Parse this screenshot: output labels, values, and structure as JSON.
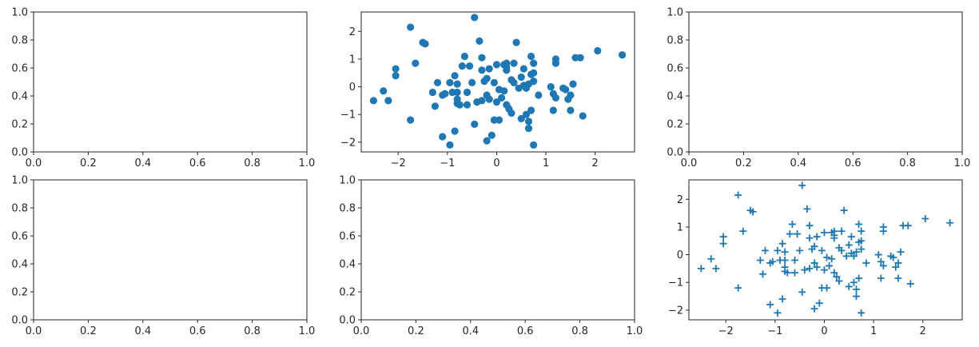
{
  "colors": {
    "marker": "#1f77b4",
    "axis": "#262626",
    "background": "#ffffff"
  },
  "chart_data": [
    {
      "type": "empty",
      "panel": "row 1, column 1",
      "xlim": [
        0,
        1
      ],
      "ylim": [
        0,
        1
      ],
      "xticks": [
        0,
        0.2,
        0.4,
        0.6,
        0.8,
        1
      ],
      "xtick_labels": [
        "0.0",
        "0.2",
        "0.4",
        "0.6",
        "0.8",
        "1.0"
      ],
      "yticks": [
        0,
        0.2,
        0.4,
        0.6,
        0.8,
        1
      ],
      "ytick_labels": [
        "0.0",
        "0.2",
        "0.4",
        "0.6",
        "0.8",
        "1.0"
      ],
      "grid": false
    },
    {
      "type": "scatter",
      "panel": "row 1, column 2",
      "marker": "circle",
      "xlim": [
        -2.75,
        2.8
      ],
      "ylim": [
        -2.35,
        2.7
      ],
      "xticks": [
        -2,
        -1,
        0,
        1,
        2
      ],
      "xtick_labels": [
        "−2",
        "−1",
        "0",
        "1",
        "2"
      ],
      "yticks": [
        -2,
        -1,
        0,
        1,
        2
      ],
      "ytick_labels": [
        "−2",
        "−1",
        "0",
        "1",
        "2"
      ],
      "grid": false,
      "x": [
        -2.5,
        -2.3,
        -2.2,
        -2.05,
        -2.05,
        -1.75,
        -1.75,
        -1.65,
        -1.5,
        -1.45,
        -1.3,
        -1.25,
        -1.2,
        -1.1,
        -1.1,
        -1.05,
        -0.95,
        -0.95,
        -0.9,
        -0.85,
        -0.85,
        -0.8,
        -0.8,
        -0.8,
        -0.75,
        -0.7,
        -0.65,
        -0.6,
        -0.6,
        -0.55,
        -0.5,
        -0.45,
        -0.4,
        -0.35,
        -0.3,
        -0.3,
        -0.3,
        -0.25,
        -0.2,
        -0.2,
        -0.2,
        -0.15,
        -0.15,
        -0.1,
        -0.05,
        -0.05,
        0.0,
        0.0,
        0.05,
        0.1,
        0.15,
        0.15,
        0.2,
        0.2,
        0.2,
        0.2,
        0.25,
        0.3,
        0.3,
        0.35,
        0.35,
        0.4,
        0.45,
        0.5,
        0.5,
        0.55,
        0.55,
        0.6,
        0.6,
        0.65,
        0.65,
        0.65,
        0.7,
        0.7,
        0.7,
        0.75,
        0.75,
        0.75,
        0.75,
        0.85,
        1.1,
        1.15,
        1.15,
        1.2,
        1.2,
        1.2,
        1.35,
        1.4,
        1.45,
        1.5,
        1.5,
        1.55,
        1.6,
        1.7,
        1.75,
        2.05,
        2.55,
        -0.8,
        -0.45,
        0.05
      ],
      "y": [
        -0.5,
        -0.15,
        -0.5,
        0.4,
        0.65,
        2.15,
        -1.2,
        0.85,
        1.6,
        1.55,
        -0.2,
        -0.7,
        0.15,
        -0.3,
        -1.8,
        -0.25,
        -2.1,
        0.15,
        -0.2,
        0.4,
        -1.6,
        0.1,
        -0.6,
        -0.2,
        -0.65,
        0.75,
        1.1,
        -0.2,
        -0.65,
        0.75,
        0.15,
        2.5,
        -0.55,
        1.65,
        1.05,
        0.6,
        -0.5,
        0.2,
        -1.95,
        -0.3,
        0.3,
        0.65,
        -0.45,
        -1.75,
        0.15,
        -1.2,
        -0.55,
        0.8,
        -1.2,
        -0.4,
        0.8,
        -0.15,
        0.6,
        0.7,
        0.85,
        -0.65,
        -0.8,
        0.25,
        -0.95,
        0.15,
        0.85,
        1.6,
        -0.05,
        0.35,
        -1.15,
        0.05,
        0.65,
        -0.05,
        -1.0,
        -1.5,
        0.1,
        -1.25,
        1.1,
        -0.85,
        0.45,
        -2.1,
        0.5,
        0.2,
        0.85,
        -0.3,
        0.0,
        -0.85,
        -0.25,
        -0.4,
        0.85,
        1.0,
        -0.05,
        -0.1,
        -0.45,
        -0.85,
        -0.3,
        0.1,
        1.05,
        1.05,
        -1.05,
        1.3,
        1.15,
        -0.45,
        -1.35,
        -0.1
      ]
    },
    {
      "type": "empty",
      "panel": "row 1, column 3",
      "xlim": [
        0,
        1
      ],
      "ylim": [
        0,
        1
      ],
      "xticks": [
        0,
        0.2,
        0.4,
        0.6,
        0.8,
        1
      ],
      "xtick_labels": [
        "0.0",
        "0.2",
        "0.4",
        "0.6",
        "0.8",
        "1.0"
      ],
      "yticks": [
        0,
        0.2,
        0.4,
        0.6,
        0.8,
        1
      ],
      "ytick_labels": [
        "0.0",
        "0.2",
        "0.4",
        "0.6",
        "0.8",
        "1.0"
      ],
      "grid": false
    },
    {
      "type": "empty",
      "panel": "row 2, column 1",
      "xlim": [
        0,
        1
      ],
      "ylim": [
        0,
        1
      ],
      "xticks": [
        0,
        0.2,
        0.4,
        0.6,
        0.8,
        1
      ],
      "xtick_labels": [
        "0.0",
        "0.2",
        "0.4",
        "0.6",
        "0.8",
        "1.0"
      ],
      "yticks": [
        0,
        0.2,
        0.4,
        0.6,
        0.8,
        1
      ],
      "ytick_labels": [
        "0.0",
        "0.2",
        "0.4",
        "0.6",
        "0.8",
        "1.0"
      ],
      "grid": false
    },
    {
      "type": "empty",
      "panel": "row 2, column 2",
      "xlim": [
        0,
        1
      ],
      "ylim": [
        0,
        1
      ],
      "xticks": [
        0,
        0.2,
        0.4,
        0.6,
        0.8,
        1
      ],
      "xtick_labels": [
        "0.0",
        "0.2",
        "0.4",
        "0.6",
        "0.8",
        "1.0"
      ],
      "yticks": [
        0,
        0.2,
        0.4,
        0.6,
        0.8,
        1
      ],
      "ytick_labels": [
        "0.0",
        "0.2",
        "0.4",
        "0.6",
        "0.8",
        "1.0"
      ],
      "grid": false
    },
    {
      "type": "scatter",
      "panel": "row 2, column 3",
      "marker": "plus",
      "xlim": [
        -2.75,
        2.8
      ],
      "ylim": [
        -2.35,
        2.7
      ],
      "xticks": [
        -2,
        -1,
        0,
        1,
        2
      ],
      "xtick_labels": [
        "−2",
        "−1",
        "0",
        "1",
        "2"
      ],
      "yticks": [
        -2,
        -1,
        0,
        1,
        2
      ],
      "ytick_labels": [
        "−2",
        "−1",
        "0",
        "1",
        "2"
      ],
      "grid": false,
      "x": [
        -2.5,
        -2.3,
        -2.2,
        -2.05,
        -2.05,
        -1.75,
        -1.75,
        -1.65,
        -1.5,
        -1.45,
        -1.3,
        -1.25,
        -1.2,
        -1.1,
        -1.1,
        -1.05,
        -0.95,
        -0.95,
        -0.9,
        -0.85,
        -0.85,
        -0.8,
        -0.8,
        -0.8,
        -0.75,
        -0.7,
        -0.65,
        -0.6,
        -0.6,
        -0.55,
        -0.5,
        -0.45,
        -0.4,
        -0.35,
        -0.3,
        -0.3,
        -0.3,
        -0.25,
        -0.2,
        -0.2,
        -0.2,
        -0.15,
        -0.15,
        -0.1,
        -0.05,
        -0.05,
        0.0,
        0.0,
        0.05,
        0.1,
        0.15,
        0.15,
        0.2,
        0.2,
        0.2,
        0.2,
        0.25,
        0.3,
        0.3,
        0.35,
        0.35,
        0.4,
        0.45,
        0.5,
        0.5,
        0.55,
        0.55,
        0.6,
        0.6,
        0.65,
        0.65,
        0.65,
        0.7,
        0.7,
        0.7,
        0.75,
        0.75,
        0.75,
        0.75,
        0.85,
        1.1,
        1.15,
        1.15,
        1.2,
        1.2,
        1.2,
        1.35,
        1.4,
        1.45,
        1.5,
        1.5,
        1.55,
        1.6,
        1.7,
        1.75,
        2.05,
        2.55,
        -0.8,
        -0.45,
        0.05
      ],
      "y": [
        -0.5,
        -0.15,
        -0.5,
        0.4,
        0.65,
        2.15,
        -1.2,
        0.85,
        1.6,
        1.55,
        -0.2,
        -0.7,
        0.15,
        -0.3,
        -1.8,
        -0.25,
        -2.1,
        0.15,
        -0.2,
        0.4,
        -1.6,
        0.1,
        -0.6,
        -0.2,
        -0.65,
        0.75,
        1.1,
        -0.2,
        -0.65,
        0.75,
        0.15,
        2.5,
        -0.55,
        1.65,
        1.05,
        0.6,
        -0.5,
        0.2,
        -1.95,
        -0.3,
        0.3,
        0.65,
        -0.45,
        -1.75,
        0.15,
        -1.2,
        -0.55,
        0.8,
        -1.2,
        -0.4,
        0.8,
        -0.15,
        0.6,
        0.7,
        0.85,
        -0.65,
        -0.8,
        0.25,
        -0.95,
        0.15,
        0.85,
        1.6,
        -0.05,
        0.35,
        -1.15,
        0.05,
        0.65,
        -0.05,
        -1.0,
        -1.5,
        0.1,
        -1.25,
        1.1,
        -0.85,
        0.45,
        -2.1,
        0.5,
        0.2,
        0.85,
        -0.3,
        0.0,
        -0.85,
        -0.25,
        -0.4,
        0.85,
        1.0,
        -0.05,
        -0.1,
        -0.45,
        -0.85,
        -0.3,
        0.1,
        1.05,
        1.05,
        -1.05,
        1.3,
        1.15,
        -0.45,
        -1.35,
        -0.1
      ]
    }
  ]
}
